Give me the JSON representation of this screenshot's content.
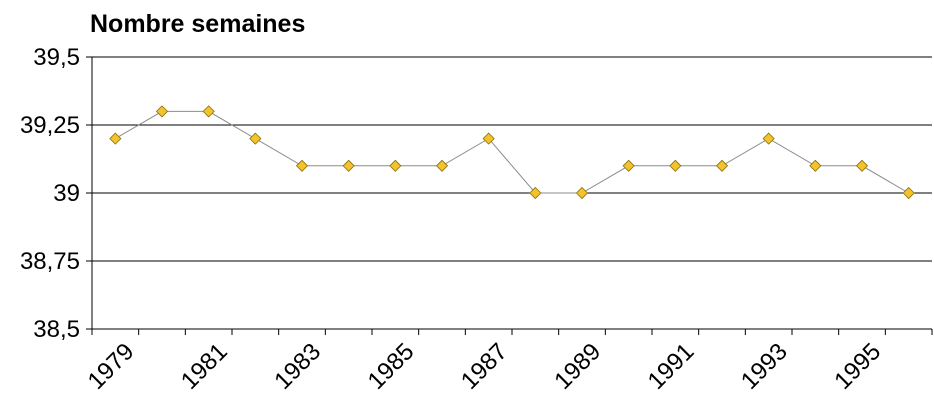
{
  "chart_data": {
    "type": "line",
    "title": "Nombre semaines",
    "xlabel": "",
    "ylabel": "",
    "x": [
      1979,
      1980,
      1981,
      1982,
      1983,
      1984,
      1985,
      1986,
      1987,
      1988,
      1989,
      1990,
      1991,
      1992,
      1993,
      1994,
      1995,
      1996
    ],
    "series": [
      {
        "values": [
          39.2,
          39.3,
          39.3,
          39.2,
          39.1,
          39.1,
          39.1,
          39.1,
          39.2,
          39.0,
          39.0,
          39.1,
          39.1,
          39.1,
          39.2,
          39.1,
          39.1,
          39.0
        ]
      }
    ],
    "ylim": [
      38.5,
      39.5
    ],
    "yticks": [
      38.5,
      38.75,
      39,
      39.25,
      39.5
    ],
    "ytick_labels": [
      "38,5",
      "38,75",
      "39",
      "39,25",
      "39,5"
    ],
    "xtick_labels": [
      "1979",
      "1981",
      "1983",
      "1985",
      "1987",
      "1989",
      "1991",
      "1993",
      "1995"
    ],
    "grid": true,
    "legend": "none",
    "colors": {
      "marker_fill": "#F2C32E",
      "marker_stroke": "#8A6D00",
      "line": "#8C8C8C",
      "grid": "#000000"
    }
  }
}
